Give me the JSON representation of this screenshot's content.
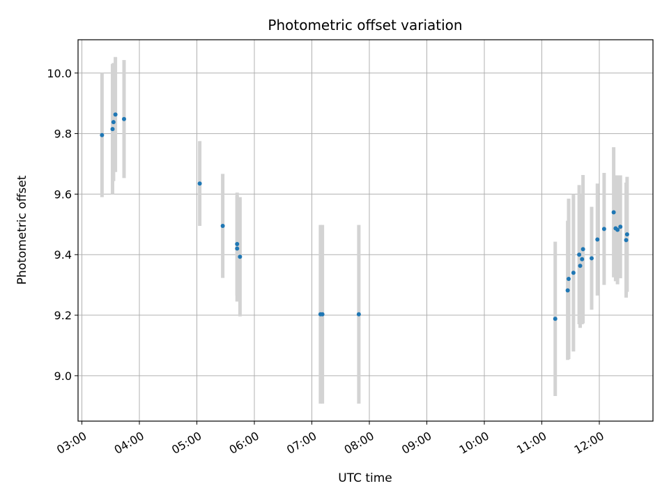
{
  "chart_data": {
    "type": "scatter",
    "title": "Photometric offset variation",
    "xlabel": "UTC time",
    "ylabel": "Photometric offset",
    "x_ticks": [
      "03:00",
      "04:00",
      "05:00",
      "06:00",
      "07:00",
      "08:00",
      "09:00",
      "10:00",
      "11:00",
      "12:00"
    ],
    "x_tick_hours": [
      3,
      4,
      5,
      6,
      7,
      8,
      9,
      10,
      11,
      12
    ],
    "y_ticks": [
      "9.0",
      "9.2",
      "9.4",
      "9.6",
      "9.8",
      "10.0"
    ],
    "y_tick_values": [
      9.0,
      9.2,
      9.4,
      9.6,
      9.8,
      10.0
    ],
    "xlim": [
      "02:56",
      "12:56"
    ],
    "ylim": [
      8.85,
      10.11
    ],
    "grid": true,
    "colors": {
      "point": "#1f77b4",
      "errorbar": "#d3d3d3",
      "grid": "#b0b0b0"
    },
    "points": [
      {
        "time": "03:21",
        "y": 9.795,
        "err": 0.205
      },
      {
        "time": "03:32",
        "y": 9.815,
        "err": 0.215
      },
      {
        "time": "03:33",
        "y": 9.838,
        "err": 0.195
      },
      {
        "time": "03:35",
        "y": 9.863,
        "err": 0.19
      },
      {
        "time": "03:44",
        "y": 9.848,
        "err": 0.195
      },
      {
        "time": "05:03",
        "y": 9.635,
        "err": 0.14
      },
      {
        "time": "05:27",
        "y": 9.495,
        "err": 0.172
      },
      {
        "time": "05:42",
        "y": 9.435,
        "err": 0.17
      },
      {
        "time": "05:42",
        "y": 9.42,
        "err": 0.175
      },
      {
        "time": "05:45",
        "y": 9.393,
        "err": 0.197
      },
      {
        "time": "07:09",
        "y": 9.203,
        "err": 0.295
      },
      {
        "time": "07:11",
        "y": 9.203,
        "err": 0.295
      },
      {
        "time": "07:49",
        "y": 9.203,
        "err": 0.295
      },
      {
        "time": "11:14",
        "y": 9.188,
        "err": 0.255
      },
      {
        "time": "11:27",
        "y": 9.282,
        "err": 0.23
      },
      {
        "time": "11:28",
        "y": 9.32,
        "err": 0.265
      },
      {
        "time": "11:33",
        "y": 9.34,
        "err": 0.26
      },
      {
        "time": "11:39",
        "y": 9.4,
        "err": 0.23
      },
      {
        "time": "11:40",
        "y": 9.363,
        "err": 0.205
      },
      {
        "time": "11:42",
        "y": 9.385,
        "err": 0.215
      },
      {
        "time": "11:43",
        "y": 9.418,
        "err": 0.245
      },
      {
        "time": "11:52",
        "y": 9.388,
        "err": 0.17
      },
      {
        "time": "11:58",
        "y": 9.45,
        "err": 0.185
      },
      {
        "time": "12:05",
        "y": 9.485,
        "err": 0.185
      },
      {
        "time": "12:15",
        "y": 9.54,
        "err": 0.215
      },
      {
        "time": "12:17",
        "y": 9.487,
        "err": 0.175
      },
      {
        "time": "12:19",
        "y": 9.482,
        "err": 0.18
      },
      {
        "time": "12:22",
        "y": 9.492,
        "err": 0.17
      },
      {
        "time": "12:28",
        "y": 9.448,
        "err": 0.19
      },
      {
        "time": "12:29",
        "y": 9.467,
        "err": 0.19
      }
    ]
  }
}
